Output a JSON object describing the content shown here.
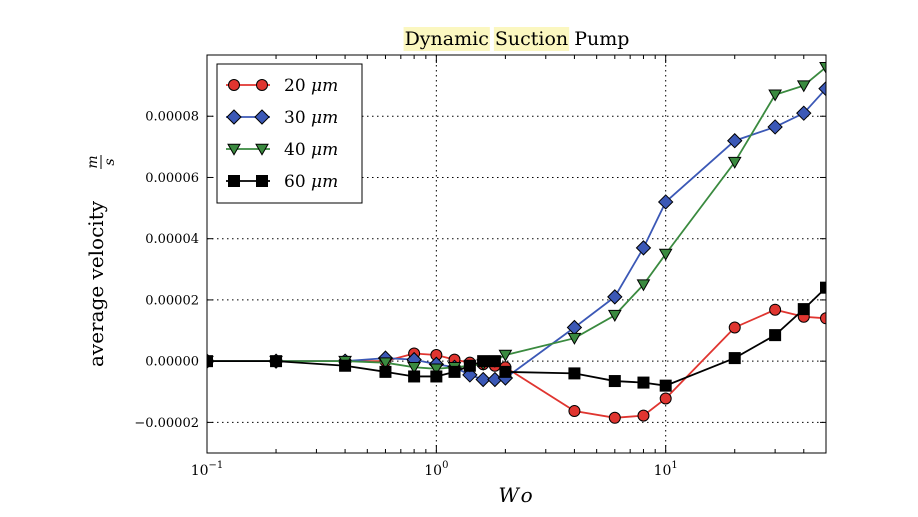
{
  "chart_data": {
    "type": "line",
    "title": {
      "parts": [
        {
          "text": "Dynamic",
          "highlight": true
        },
        {
          "text": "Suction",
          "highlight": true
        },
        {
          "text": "Pump",
          "highlight": false
        }
      ],
      "highlight_color": "#fbf7c0"
    },
    "xlabel": "Wo",
    "ylabel": "average velocity",
    "ylabel_unit": {
      "num": "m",
      "den": "s"
    },
    "xscale": "log",
    "xlim": [
      0.1,
      50
    ],
    "ylim": [
      -3e-05,
      0.0001
    ],
    "x_ticks": [
      {
        "value": 0.1,
        "base": "10",
        "exp": "−1"
      },
      {
        "value": 1,
        "base": "10",
        "exp": "0"
      },
      {
        "value": 10,
        "base": "10",
        "exp": "1"
      }
    ],
    "y_ticks": [
      {
        "value": -2e-05,
        "label": "−0.00002"
      },
      {
        "value": 0,
        "label": "0.00000"
      },
      {
        "value": 2e-05,
        "label": "0.00002"
      },
      {
        "value": 4e-05,
        "label": "0.00004"
      },
      {
        "value": 6e-05,
        "label": "0.00006"
      },
      {
        "value": 8e-05,
        "label": "0.00008"
      }
    ],
    "grid": "dotted",
    "legend_position": "top-left",
    "series": [
      {
        "name": "20 μm",
        "label_value": "20",
        "label_unit": "μm",
        "color": "#e03530",
        "line_color": "#e03530",
        "marker": "circle",
        "x": [
          0.1,
          0.2,
          0.4,
          0.6,
          0.8,
          1.0,
          1.2,
          1.4,
          1.6,
          1.8,
          2.0,
          4,
          6,
          8,
          10,
          20,
          30,
          40,
          50
        ],
        "y": [
          0.0,
          0.0,
          0.0,
          0.0,
          2.5e-06,
          2e-06,
          5e-07,
          -5e-07,
          -1e-06,
          -1.5e-06,
          -2e-06,
          -1.63e-05,
          -1.85e-05,
          -1.78e-05,
          -1.22e-05,
          1.1e-05,
          1.68e-05,
          1.45e-05,
          1.4e-05
        ]
      },
      {
        "name": "30 μm",
        "label_value": "30",
        "label_unit": "μm",
        "color": "#3b58b6",
        "line_color": "#3b58b6",
        "marker": "diamond",
        "x": [
          0.1,
          0.2,
          0.4,
          0.6,
          0.8,
          1.0,
          1.2,
          1.4,
          1.6,
          1.8,
          2.0,
          4,
          6,
          8,
          10,
          20,
          30,
          40,
          50
        ],
        "y": [
          0.0,
          0.0,
          0.0,
          1e-06,
          5e-07,
          -1e-06,
          -2e-06,
          -4.5e-06,
          -6e-06,
          -6e-06,
          -5.5e-06,
          1.1e-05,
          2.1e-05,
          3.7e-05,
          5.2e-05,
          7.2e-05,
          7.65e-05,
          8.1e-05,
          8.9e-05
        ]
      },
      {
        "name": "40 μm",
        "label_value": "40",
        "label_unit": "μm",
        "color": "#3a8a3f",
        "line_color": "#3a8a3f",
        "marker": "triangle-down",
        "x": [
          0.1,
          0.2,
          0.4,
          0.6,
          0.8,
          1.0,
          1.2,
          1.4,
          1.6,
          1.8,
          2.0,
          4,
          6,
          8,
          10,
          20,
          30,
          40,
          50
        ],
        "y": [
          0.0,
          0.0,
          0.0,
          -5e-07,
          -2e-06,
          -2.5e-06,
          -2e-06,
          -1.5e-06,
          -1e-06,
          0.0,
          2e-06,
          7.5e-06,
          1.5e-05,
          2.5e-05,
          3.5e-05,
          6.5e-05,
          8.7e-05,
          9e-05,
          9.6e-05
        ]
      },
      {
        "name": "60 μm",
        "label_value": "60",
        "label_unit": "μm",
        "color": "#000000",
        "line_color": "#000000",
        "marker": "square",
        "x": [
          0.1,
          0.2,
          0.4,
          0.6,
          0.8,
          1.0,
          1.2,
          1.4,
          1.6,
          1.8,
          2.0,
          4,
          6,
          8,
          10,
          20,
          30,
          40,
          50
        ],
        "y": [
          0.0,
          0.0,
          -1.5e-06,
          -3.5e-06,
          -5e-06,
          -5e-06,
          -3.5e-06,
          -1.5e-06,
          0.0,
          0.0,
          -3.5e-06,
          -4e-06,
          -6.5e-06,
          -7e-06,
          -8e-06,
          1e-06,
          8.5e-06,
          1.7e-05,
          2.4e-05
        ]
      }
    ]
  }
}
